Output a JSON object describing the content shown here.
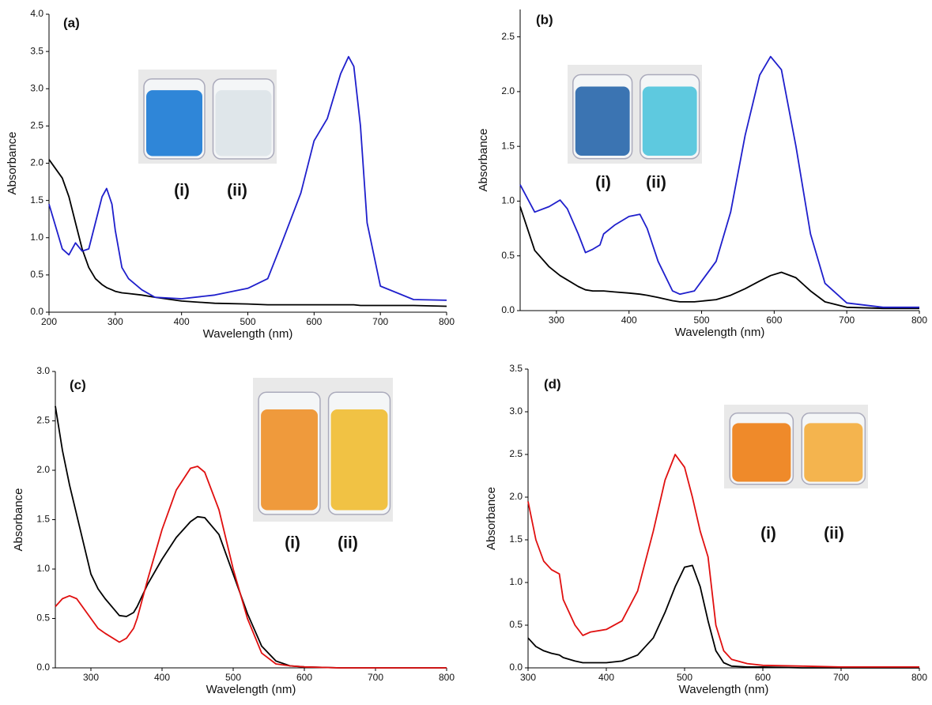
{
  "chart_data": [
    {
      "type": "line",
      "title": "(a)",
      "xlabel": "Wavelength (nm)",
      "ylabel": "Absorbance",
      "annotations": [
        "(i)",
        "(ii)"
      ],
      "x": [
        200,
        220,
        230,
        240,
        250,
        260,
        270,
        280,
        287,
        295,
        300,
        310,
        320,
        340,
        360,
        400,
        450,
        500,
        530,
        550,
        580,
        600,
        620,
        640,
        652,
        660,
        670,
        680,
        700,
        750,
        800
      ],
      "series": [
        {
          "color": "#000000",
          "values": [
            2.05,
            1.8,
            1.55,
            1.2,
            0.85,
            0.6,
            0.45,
            0.37,
            0.33,
            0.3,
            0.28,
            0.26,
            0.25,
            0.23,
            0.2,
            0.15,
            0.12,
            0.11,
            0.1,
            0.1,
            0.1,
            0.1,
            0.1,
            0.1,
            0.1,
            0.1,
            0.09,
            0.09,
            0.09,
            0.09,
            0.08
          ]
        },
        {
          "color": "#1f1fcc",
          "values": [
            1.45,
            0.85,
            0.77,
            0.93,
            0.82,
            0.85,
            1.2,
            1.55,
            1.66,
            1.45,
            1.1,
            0.6,
            0.45,
            0.3,
            0.2,
            0.18,
            0.23,
            0.32,
            0.45,
            0.9,
            1.6,
            2.3,
            2.6,
            3.2,
            3.43,
            3.3,
            2.5,
            1.2,
            0.35,
            0.17,
            0.16
          ]
        }
      ],
      "xlim": [
        200,
        800
      ],
      "xticks": [
        200,
        300,
        400,
        500,
        600,
        700,
        800
      ],
      "ylim": [
        0,
        4
      ],
      "yticks": [
        {
          "value": 0,
          "label": "0.0"
        },
        0.5,
        {
          "value": 1,
          "label": "1.0"
        },
        1.5,
        {
          "value": 2,
          "label": "2.0"
        },
        2.5,
        {
          "value": 3,
          "label": "3.0"
        },
        3.5,
        {
          "value": 4,
          "label": "4.0"
        }
      ]
    },
    {
      "type": "line",
      "title": "(b)",
      "xlabel": "Wavelength (nm)",
      "ylabel": "Absorbance",
      "annotations": [
        "(i)",
        "(ii)"
      ],
      "x": [
        250,
        270,
        290,
        305,
        315,
        330,
        340,
        350,
        360,
        365,
        380,
        400,
        415,
        425,
        440,
        460,
        470,
        490,
        520,
        540,
        560,
        580,
        595,
        610,
        630,
        650,
        670,
        700,
        750,
        800
      ],
      "series": [
        {
          "color": "#000000",
          "values": [
            0.95,
            0.55,
            0.4,
            0.32,
            0.28,
            0.22,
            0.19,
            0.18,
            0.18,
            0.18,
            0.17,
            0.16,
            0.15,
            0.14,
            0.12,
            0.09,
            0.08,
            0.08,
            0.1,
            0.14,
            0.2,
            0.27,
            0.32,
            0.35,
            0.3,
            0.18,
            0.08,
            0.03,
            0.02,
            0.02
          ]
        },
        {
          "color": "#1f1fcc",
          "values": [
            1.15,
            0.9,
            0.95,
            1.01,
            0.93,
            0.7,
            0.53,
            0.56,
            0.6,
            0.7,
            0.78,
            0.86,
            0.88,
            0.75,
            0.45,
            0.18,
            0.15,
            0.18,
            0.45,
            0.9,
            1.6,
            2.15,
            2.32,
            2.2,
            1.5,
            0.7,
            0.25,
            0.07,
            0.03,
            0.03
          ]
        }
      ],
      "xlim": [
        250,
        800
      ],
      "xticks": [
        300,
        400,
        500,
        600,
        700,
        800
      ],
      "ylim": [
        0,
        2.75
      ],
      "yticks": [
        {
          "value": 0,
          "label": "0.0"
        },
        0.5,
        {
          "value": 1,
          "label": "1.0"
        },
        1.5,
        {
          "value": 2,
          "label": "2.0"
        },
        2.5
      ]
    },
    {
      "type": "line",
      "title": "(c)",
      "xlabel": "Wavelength (nm)",
      "ylabel": "Absorbance",
      "annotations": [
        "(i)",
        "(ii)"
      ],
      "x": [
        250,
        260,
        270,
        280,
        300,
        310,
        320,
        340,
        350,
        360,
        365,
        380,
        400,
        420,
        440,
        450,
        460,
        480,
        500,
        520,
        540,
        560,
        580,
        600,
        650,
        700,
        800
      ],
      "series": [
        {
          "color": "#000000",
          "values": [
            2.65,
            2.2,
            1.85,
            1.55,
            0.95,
            0.8,
            0.7,
            0.53,
            0.52,
            0.56,
            0.62,
            0.85,
            1.1,
            1.32,
            1.48,
            1.53,
            1.52,
            1.35,
            0.95,
            0.55,
            0.22,
            0.07,
            0.02,
            0.01,
            0,
            0,
            0
          ]
        },
        {
          "color": "#e01010",
          "values": [
            0.62,
            0.7,
            0.73,
            0.7,
            0.5,
            0.4,
            0.35,
            0.26,
            0.3,
            0.4,
            0.5,
            0.9,
            1.4,
            1.8,
            2.02,
            2.04,
            1.98,
            1.6,
            1.0,
            0.5,
            0.15,
            0.04,
            0.02,
            0.01,
            0,
            0,
            0
          ]
        }
      ],
      "xlim": [
        250,
        800
      ],
      "xticks": [
        300,
        400,
        500,
        600,
        700,
        800
      ],
      "ylim": [
        0,
        3
      ],
      "yticks": [
        {
          "value": 0,
          "label": "0.0"
        },
        0.5,
        {
          "value": 1,
          "label": "1.0"
        },
        1.5,
        {
          "value": 2,
          "label": "2.0"
        },
        2.5,
        {
          "value": 3,
          "label": "3.0"
        }
      ]
    },
    {
      "type": "line",
      "title": "(d)",
      "xlabel": "Wavelength (nm)",
      "ylabel": "Absorbance",
      "annotations": [
        "(i)",
        "(ii)"
      ],
      "x": [
        300,
        310,
        320,
        330,
        340,
        345,
        360,
        370,
        380,
        400,
        420,
        440,
        460,
        475,
        488,
        500,
        510,
        520,
        530,
        540,
        550,
        560,
        580,
        600,
        650,
        700,
        800
      ],
      "series": [
        {
          "color": "#000000",
          "values": [
            0.35,
            0.25,
            0.2,
            0.17,
            0.15,
            0.12,
            0.08,
            0.06,
            0.06,
            0.06,
            0.08,
            0.15,
            0.35,
            0.65,
            0.95,
            1.18,
            1.2,
            0.95,
            0.55,
            0.2,
            0.06,
            0.02,
            0.01,
            0.01,
            0,
            0,
            0
          ]
        },
        {
          "color": "#e01010",
          "values": [
            1.95,
            1.5,
            1.25,
            1.15,
            1.1,
            0.8,
            0.5,
            0.38,
            0.42,
            0.45,
            0.55,
            0.9,
            1.6,
            2.2,
            2.5,
            2.35,
            2.0,
            1.6,
            1.3,
            0.5,
            0.2,
            0.1,
            0.05,
            0.03,
            0.02,
            0.01,
            0.01
          ]
        }
      ],
      "xlim": [
        300,
        800
      ],
      "xticks": [
        300,
        400,
        500,
        600,
        700,
        800
      ],
      "ylim": [
        0,
        3.5
      ],
      "yticks": [
        {
          "value": 0,
          "label": "0.0"
        },
        0.5,
        {
          "value": 1,
          "label": "1.0"
        },
        1.5,
        {
          "value": 2,
          "label": "2.0"
        },
        2.5,
        {
          "value": 3,
          "label": "3.0"
        },
        3.5
      ]
    }
  ]
}
